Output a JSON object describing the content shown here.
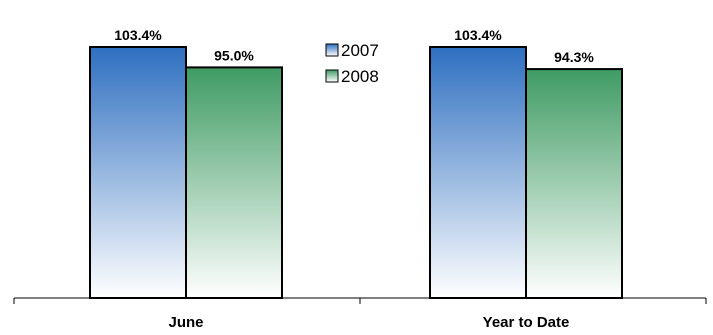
{
  "chart_data": {
    "type": "bar",
    "categories": [
      "June",
      "Year to Date"
    ],
    "series": [
      {
        "name": "2007",
        "values": [
          103.4,
          103.4
        ],
        "labels": [
          "103.4%",
          "103.4%"
        ],
        "color": "#2e6fc0"
      },
      {
        "name": "2008",
        "values": [
          95.0,
          94.3
        ],
        "labels": [
          "95.0%",
          "94.3%"
        ],
        "color": "#3f9b63"
      }
    ],
    "ylim": [
      0,
      110
    ],
    "grid": false,
    "legend_position": "top-center",
    "title": "",
    "xlabel": "",
    "ylabel": ""
  }
}
